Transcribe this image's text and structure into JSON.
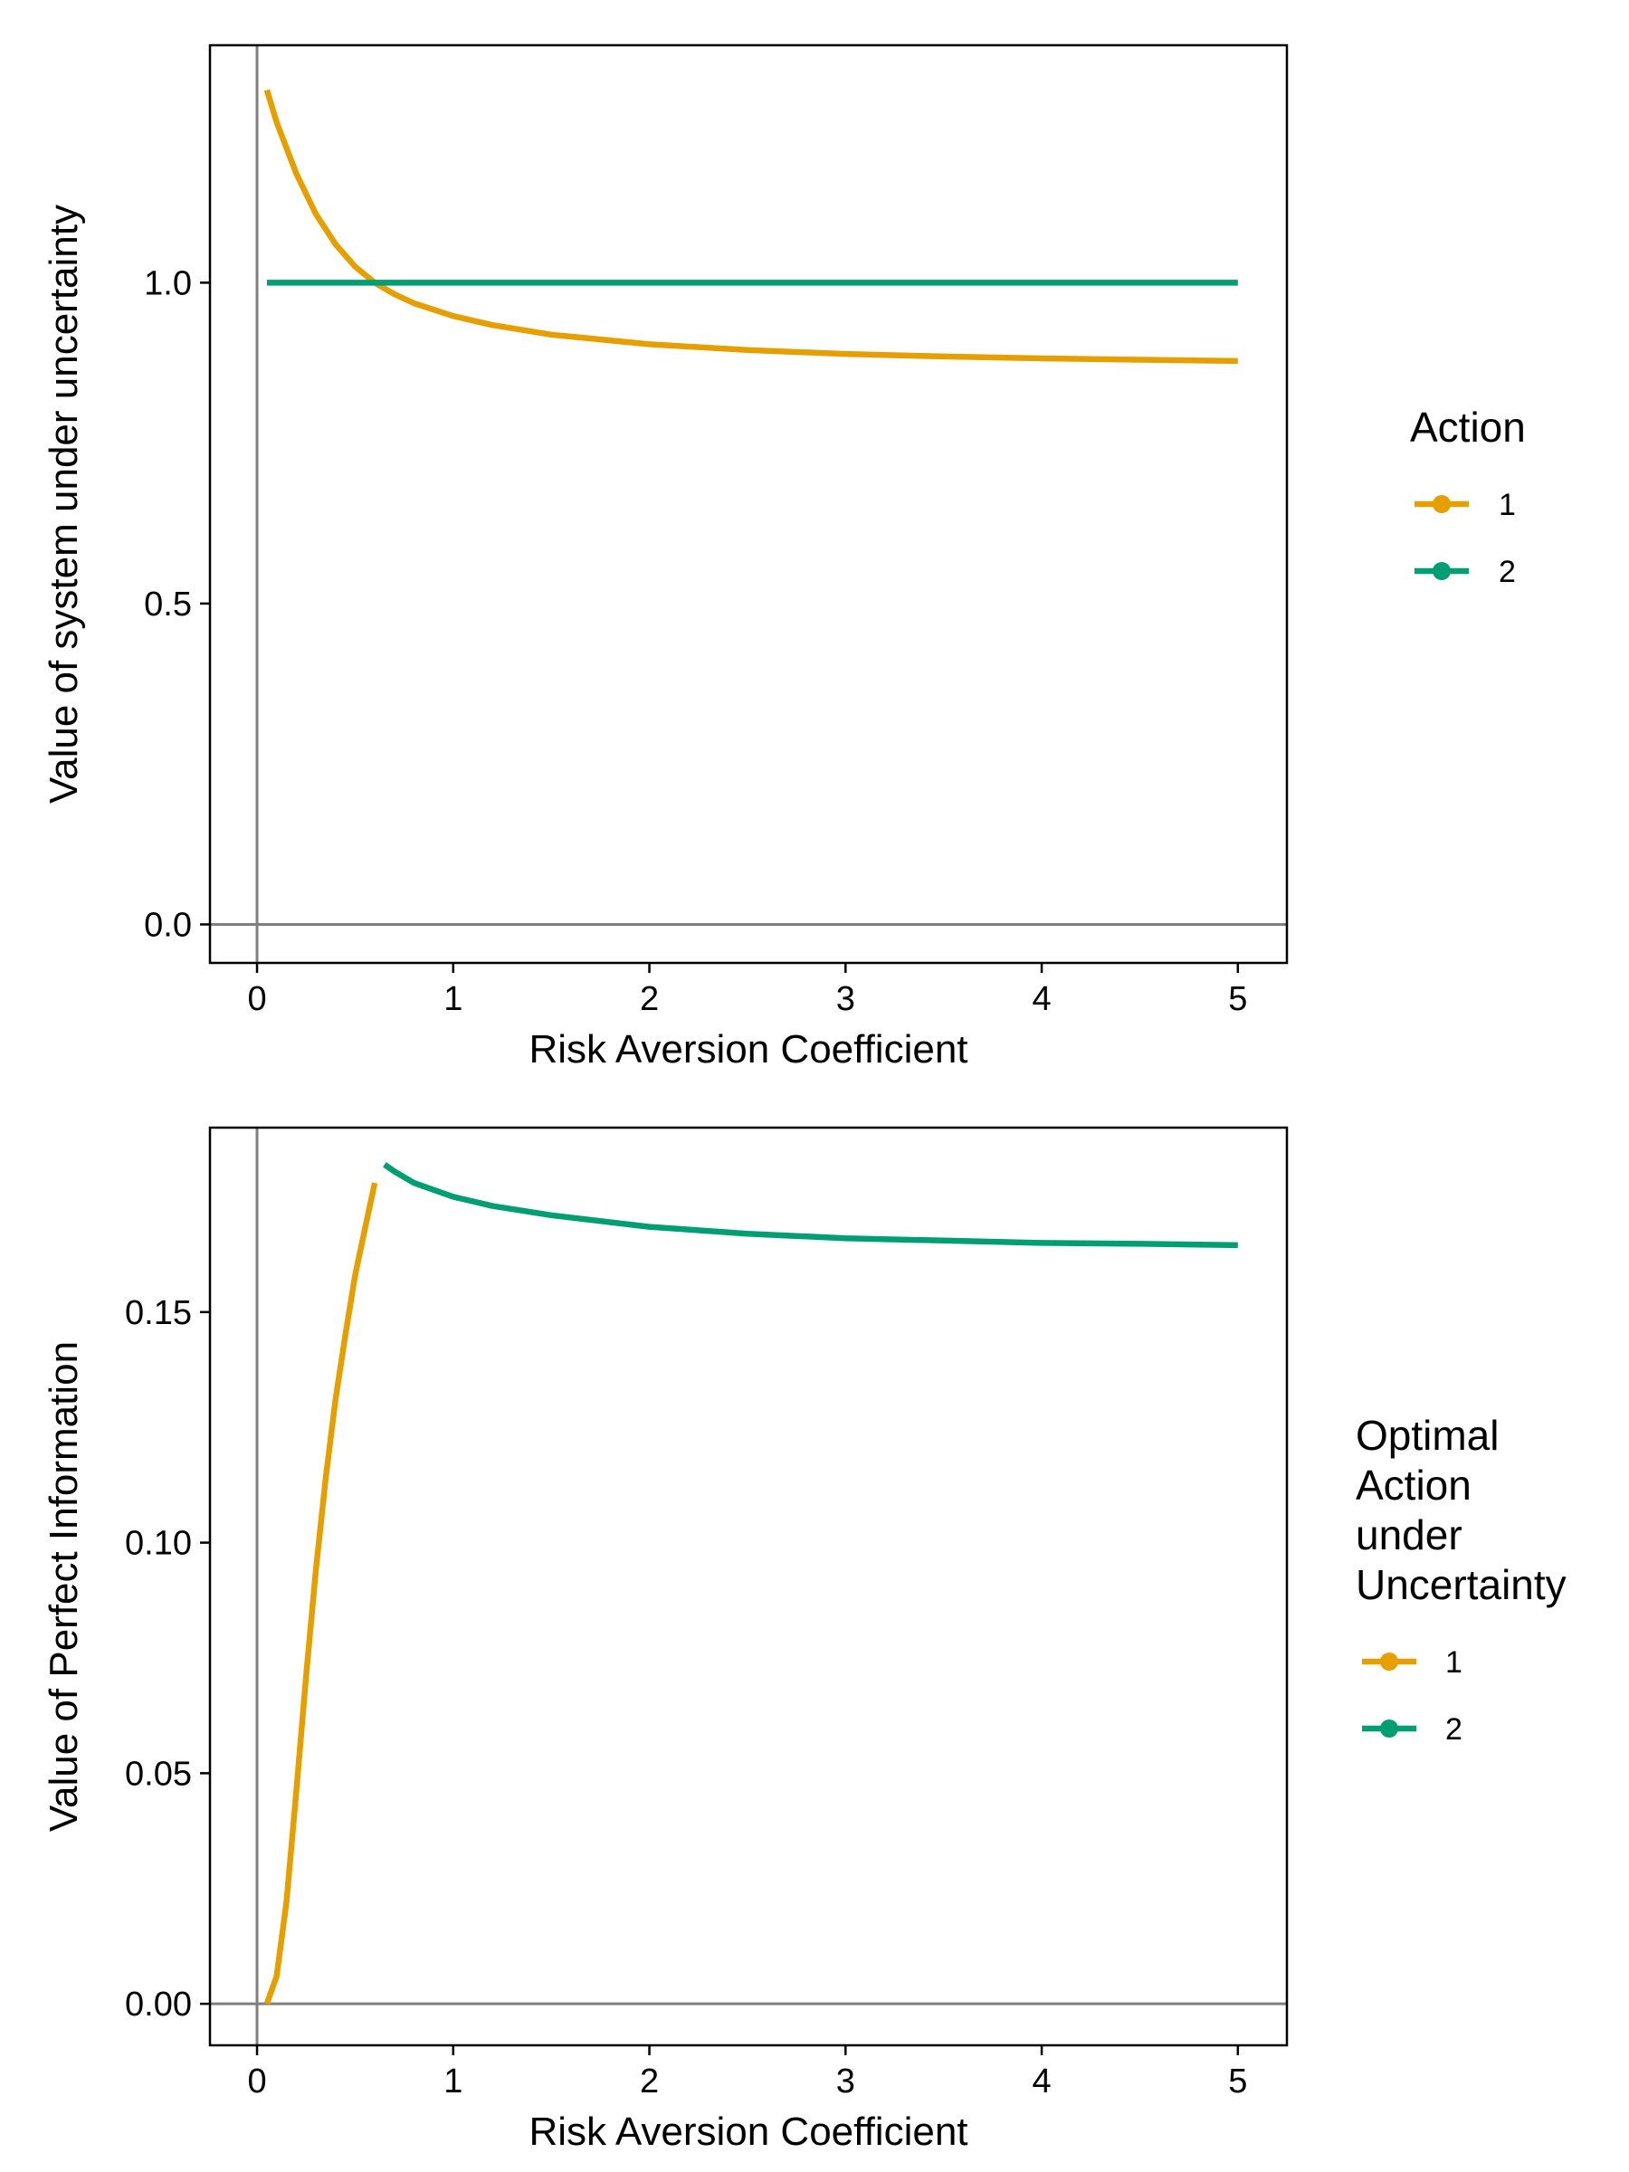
{
  "chart_data": [
    {
      "type": "line",
      "xlabel": "Risk Aversion Coefficient",
      "ylabel": "Value of system under uncertainty",
      "xlim": [
        -0.24,
        5.25
      ],
      "ylim": [
        -0.06,
        1.37
      ],
      "x_ticks": [
        0,
        1,
        2,
        3,
        4,
        5
      ],
      "x_tick_labels": [
        "0",
        "1",
        "2",
        "3",
        "4",
        "5"
      ],
      "y_ticks": [
        0,
        0.5,
        1.0
      ],
      "y_tick_labels": [
        "0.0",
        "0.5",
        "1.0"
      ],
      "reference_lines": {
        "x": 0,
        "y": 0
      },
      "grid": false,
      "legend": {
        "title": "Action",
        "position": "right",
        "entries": [
          {
            "label": "1",
            "color": "#E69F00"
          },
          {
            "label": "2",
            "color": "#009E73"
          }
        ]
      },
      "series": [
        {
          "name": "1",
          "color": "#E69F00",
          "x": [
            0.05,
            0.1,
            0.2,
            0.3,
            0.4,
            0.5,
            0.6,
            0.7,
            0.8,
            1.0,
            1.2,
            1.5,
            2.0,
            2.5,
            3.0,
            3.5,
            4.0,
            4.5,
            5.0
          ],
          "y": [
            1.3,
            1.25,
            1.17,
            1.107,
            1.06,
            1.025,
            1.0,
            0.982,
            0.968,
            0.948,
            0.934,
            0.919,
            0.904,
            0.895,
            0.889,
            0.885,
            0.882,
            0.88,
            0.878
          ]
        },
        {
          "name": "2",
          "color": "#009E73",
          "x": [
            0.05,
            5.0
          ],
          "y": [
            1.0,
            1.0
          ]
        }
      ]
    },
    {
      "type": "line",
      "xlabel": "Risk Aversion Coefficient",
      "ylabel": "Value of Perfect Information",
      "xlim": [
        -0.24,
        5.25
      ],
      "ylim": [
        -0.009,
        0.19
      ],
      "x_ticks": [
        0,
        1,
        2,
        3,
        4,
        5
      ],
      "x_tick_labels": [
        "0",
        "1",
        "2",
        "3",
        "4",
        "5"
      ],
      "y_ticks": [
        0,
        0.05,
        0.1,
        0.15
      ],
      "y_tick_labels": [
        "0.00",
        "0.05",
        "0.10",
        "0.15"
      ],
      "reference_lines": {
        "x": 0,
        "y": 0
      },
      "grid": false,
      "legend": {
        "title": [
          "Optimal",
          "Action",
          "under",
          "Uncertainty"
        ],
        "position": "right",
        "entries": [
          {
            "label": "1",
            "color": "#E69F00"
          },
          {
            "label": "2",
            "color": "#009E73"
          }
        ]
      },
      "series": [
        {
          "name": "1",
          "color": "#E69F00",
          "x": [
            0.05,
            0.1,
            0.15,
            0.2,
            0.25,
            0.3,
            0.35,
            0.4,
            0.45,
            0.5,
            0.55,
            0.6
          ],
          "y": [
            0.0,
            0.006,
            0.022,
            0.046,
            0.071,
            0.094,
            0.114,
            0.131,
            0.145,
            0.158,
            0.168,
            0.178
          ]
        },
        {
          "name": "2",
          "color": "#009E73",
          "x": [
            0.65,
            0.7,
            0.8,
            1.0,
            1.2,
            1.5,
            2.0,
            2.5,
            3.0,
            3.5,
            4.0,
            4.5,
            5.0
          ],
          "y": [
            0.182,
            0.1805,
            0.178,
            0.175,
            0.173,
            0.171,
            0.1685,
            0.167,
            0.166,
            0.1655,
            0.165,
            0.1648,
            0.1645
          ]
        }
      ]
    }
  ]
}
